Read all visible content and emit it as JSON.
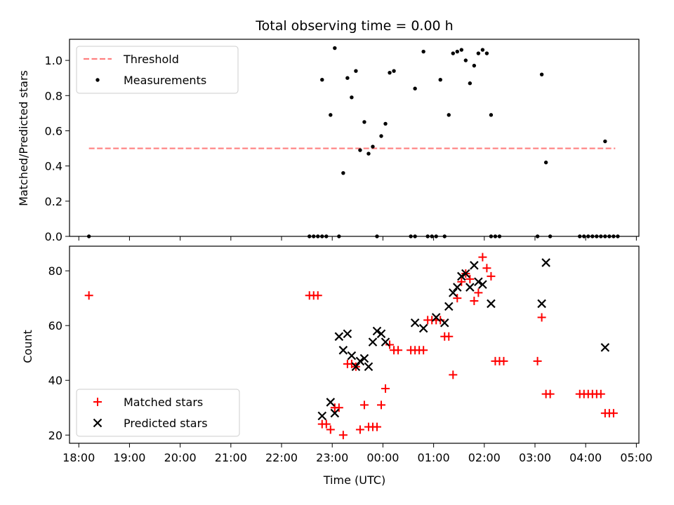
{
  "chart_data": [
    {
      "type": "scatter",
      "title": "Total observing time = 0.00 h",
      "xlabel": "",
      "ylabel": "Matched/Predicted stars",
      "xlim": [
        "17:49",
        "05:03"
      ],
      "ylim": [
        0,
        1.12
      ],
      "yticks": [
        "0.0",
        "0.2",
        "0.4",
        "0.6",
        "0.8",
        "1.0"
      ],
      "grid": false,
      "legend_position": "top-left",
      "threshold": {
        "name": "Threshold",
        "value": 0.5,
        "x_range": [
          "18:12",
          "04:35"
        ],
        "color": "#ff8080",
        "style": "dashed"
      },
      "series": [
        {
          "name": "Measurements",
          "color": "#000000",
          "marker": "dot",
          "points": [
            [
              "18:12",
              0.0
            ],
            [
              "22:33",
              0.0
            ],
            [
              "22:38",
              0.0
            ],
            [
              "22:43",
              0.0
            ],
            [
              "22:48",
              0.0
            ],
            [
              "22:53",
              0.0
            ],
            [
              "23:08",
              0.0
            ],
            [
              "23:53",
              0.0
            ],
            [
              "00:33",
              0.0
            ],
            [
              "00:38",
              0.0
            ],
            [
              "00:53",
              0.0
            ],
            [
              "00:58",
              0.0
            ],
            [
              "01:03",
              0.0
            ],
            [
              "01:13",
              0.0
            ],
            [
              "02:08",
              0.0
            ],
            [
              "02:13",
              0.0
            ],
            [
              "02:18",
              0.0
            ],
            [
              "03:03",
              0.0
            ],
            [
              "03:18",
              0.0
            ],
            [
              "03:53",
              0.0
            ],
            [
              "03:58",
              0.0
            ],
            [
              "04:03",
              0.0
            ],
            [
              "04:08",
              0.0
            ],
            [
              "04:13",
              0.0
            ],
            [
              "04:18",
              0.0
            ],
            [
              "04:23",
              0.0
            ],
            [
              "04:28",
              0.0
            ],
            [
              "04:33",
              0.0
            ],
            [
              "04:38",
              0.0
            ],
            [
              "22:48",
              0.89
            ],
            [
              "22:58",
              0.69
            ],
            [
              "23:03",
              1.07
            ],
            [
              "23:13",
              0.36
            ],
            [
              "23:18",
              0.9
            ],
            [
              "23:23",
              0.79
            ],
            [
              "23:28",
              0.94
            ],
            [
              "23:33",
              0.49
            ],
            [
              "23:38",
              0.65
            ],
            [
              "23:43",
              0.47
            ],
            [
              "23:48",
              0.51
            ],
            [
              "23:58",
              0.57
            ],
            [
              "00:03",
              0.64
            ],
            [
              "00:08",
              0.93
            ],
            [
              "00:13",
              0.94
            ],
            [
              "00:38",
              0.84
            ],
            [
              "00:48",
              1.05
            ],
            [
              "01:08",
              0.89
            ],
            [
              "01:18",
              0.69
            ],
            [
              "01:23",
              1.04
            ],
            [
              "01:28",
              1.05
            ],
            [
              "01:33",
              1.06
            ],
            [
              "01:38",
              1.0
            ],
            [
              "01:43",
              0.87
            ],
            [
              "01:48",
              0.97
            ],
            [
              "01:53",
              1.04
            ],
            [
              "01:58",
              1.06
            ],
            [
              "02:03",
              1.04
            ],
            [
              "02:08",
              0.69
            ],
            [
              "03:08",
              0.92
            ],
            [
              "03:13",
              0.42
            ],
            [
              "04:23",
              0.54
            ]
          ]
        }
      ]
    },
    {
      "type": "scatter",
      "title": "",
      "xlabel": "Time (UTC)",
      "ylabel": "Count",
      "xlim": [
        "17:49",
        "05:03"
      ],
      "ylim": [
        17,
        89
      ],
      "xticks": [
        "18:00",
        "19:00",
        "20:00",
        "21:00",
        "22:00",
        "23:00",
        "00:00",
        "01:00",
        "02:00",
        "03:00",
        "04:00",
        "05:00"
      ],
      "yticks": [
        "20",
        "40",
        "60",
        "80"
      ],
      "grid": false,
      "legend_position": "bottom-left",
      "series": [
        {
          "name": "Matched stars",
          "color": "#ff0000",
          "marker": "plus",
          "points": [
            [
              "18:12",
              71
            ],
            [
              "22:33",
              71
            ],
            [
              "22:38",
              71
            ],
            [
              "22:43",
              71
            ],
            [
              "22:48",
              24
            ],
            [
              "22:53",
              24
            ],
            [
              "22:58",
              22
            ],
            [
              "23:03",
              30
            ],
            [
              "23:08",
              30
            ],
            [
              "23:13",
              20
            ],
            [
              "23:18",
              46
            ],
            [
              "23:23",
              46
            ],
            [
              "23:28",
              45
            ],
            [
              "23:33",
              22
            ],
            [
              "23:38",
              31
            ],
            [
              "23:43",
              23
            ],
            [
              "23:48",
              23
            ],
            [
              "23:53",
              23
            ],
            [
              "23:58",
              31
            ],
            [
              "00:03",
              37
            ],
            [
              "00:08",
              53
            ],
            [
              "00:13",
              51
            ],
            [
              "00:18",
              51
            ],
            [
              "00:33",
              51
            ],
            [
              "00:38",
              51
            ],
            [
              "00:43",
              51
            ],
            [
              "00:48",
              51
            ],
            [
              "00:53",
              62
            ],
            [
              "00:58",
              62
            ],
            [
              "01:03",
              62
            ],
            [
              "01:08",
              62
            ],
            [
              "01:13",
              56
            ],
            [
              "01:18",
              56
            ],
            [
              "01:23",
              42
            ],
            [
              "01:28",
              70
            ],
            [
              "01:33",
              76
            ],
            [
              "01:38",
              79
            ],
            [
              "01:43",
              77
            ],
            [
              "01:48",
              69
            ],
            [
              "01:53",
              72
            ],
            [
              "01:58",
              85
            ],
            [
              "02:03",
              81
            ],
            [
              "02:08",
              78
            ],
            [
              "02:13",
              47
            ],
            [
              "02:18",
              47
            ],
            [
              "02:23",
              47
            ],
            [
              "03:03",
              47
            ],
            [
              "03:08",
              63
            ],
            [
              "03:13",
              35
            ],
            [
              "03:18",
              35
            ],
            [
              "03:53",
              35
            ],
            [
              "03:58",
              35
            ],
            [
              "04:03",
              35
            ],
            [
              "04:08",
              35
            ],
            [
              "04:13",
              35
            ],
            [
              "04:18",
              35
            ],
            [
              "04:23",
              28
            ],
            [
              "04:28",
              28
            ],
            [
              "04:33",
              28
            ]
          ]
        },
        {
          "name": "Predicted stars",
          "color": "#000000",
          "marker": "x",
          "points": [
            [
              "22:48",
              27
            ],
            [
              "22:58",
              32
            ],
            [
              "23:03",
              28
            ],
            [
              "23:08",
              56
            ],
            [
              "23:13",
              51
            ],
            [
              "23:18",
              57
            ],
            [
              "23:23",
              49
            ],
            [
              "23:28",
              45
            ],
            [
              "23:33",
              47
            ],
            [
              "23:38",
              48
            ],
            [
              "23:43",
              45
            ],
            [
              "23:48",
              54
            ],
            [
              "23:53",
              58
            ],
            [
              "23:58",
              57
            ],
            [
              "00:03",
              54
            ],
            [
              "00:38",
              61
            ],
            [
              "00:48",
              59
            ],
            [
              "01:03",
              63
            ],
            [
              "01:13",
              61
            ],
            [
              "01:18",
              67
            ],
            [
              "01:23",
              72
            ],
            [
              "01:28",
              74
            ],
            [
              "01:33",
              78
            ],
            [
              "01:38",
              79
            ],
            [
              "01:43",
              74
            ],
            [
              "01:48",
              82
            ],
            [
              "01:53",
              76
            ],
            [
              "01:58",
              75
            ],
            [
              "02:08",
              68
            ],
            [
              "03:08",
              68
            ],
            [
              "03:13",
              83
            ],
            [
              "04:23",
              52
            ]
          ]
        }
      ]
    }
  ]
}
